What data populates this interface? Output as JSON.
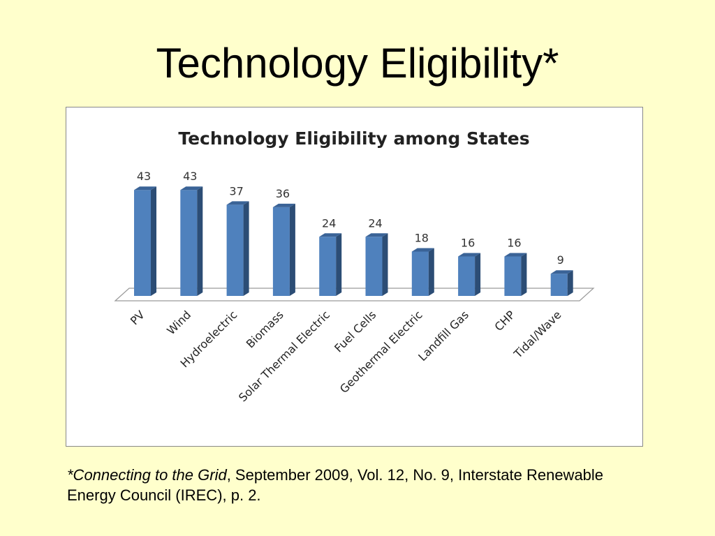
{
  "slide": {
    "title": "Technology Eligibility*"
  },
  "footnote": {
    "source_italic": "*Connecting to the Grid",
    "source_rest": ",  September 2009, Vol. 12, No. 9, Interstate Renewable Energy Council (IREC), p. 2."
  },
  "colors": {
    "background": "#FFFFCC",
    "bar_front": "#4F81BD",
    "bar_side": "#2C4D75",
    "bar_top": "#3A6397"
  },
  "chart_data": {
    "type": "bar",
    "title": "Technology Eligibility among States",
    "categories": [
      "PV",
      "Wind",
      "Hydroelectric",
      "Biomass",
      "Solar Thermal Electric",
      "Fuel Cells",
      "Geothermal Electric",
      "Landfill Gas",
      "CHP",
      "Tidal/Wave"
    ],
    "values": [
      43,
      43,
      37,
      36,
      24,
      24,
      18,
      16,
      16,
      9
    ],
    "ylim": [
      0,
      50
    ],
    "grid": false,
    "legend": "none",
    "data_labels": true,
    "style": "3d-column"
  }
}
